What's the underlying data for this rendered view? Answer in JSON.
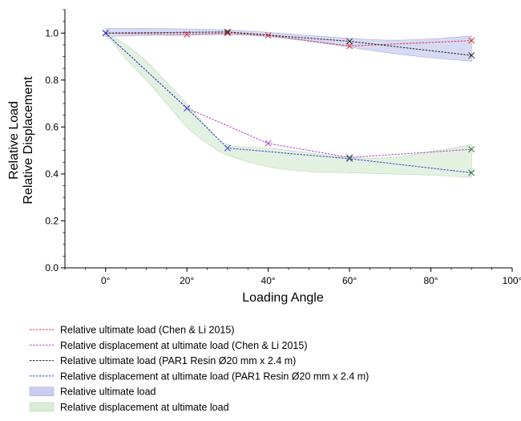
{
  "chart_data": {
    "type": "line",
    "title": "",
    "xlabel": "Loading Angle",
    "ylabel": [
      "Relative Load",
      "Relative Displacement"
    ],
    "xlim": [
      -10,
      100
    ],
    "ylim": [
      0,
      1.1
    ],
    "xticks": [
      0,
      20,
      40,
      60,
      80,
      100
    ],
    "xtick_labels": [
      "0°",
      "20°",
      "40°",
      "60°",
      "80°",
      "100°"
    ],
    "yticks": [
      0,
      0.2,
      0.4,
      0.6,
      0.8,
      1.0
    ],
    "ytick_labels": [
      "0.0",
      "0.2",
      "0.4",
      "0.6",
      "0.8",
      "1.0"
    ],
    "legend_position": "below",
    "series": [
      {
        "name": "Relative ultimate load (Chen & Li 2015)",
        "color": "#e0303a",
        "style": "dashed",
        "marker": "x",
        "x": [
          0,
          20,
          30,
          40,
          60,
          90
        ],
        "y": [
          1.0,
          0.995,
          1.0,
          0.99,
          0.945,
          0.968
        ]
      },
      {
        "name": "Relative displacement at ultimate load (Chen & Li 2015)",
        "color": "#b040c8",
        "style": "dashed",
        "marker": "x",
        "x": [
          0,
          20,
          40,
          60,
          90
        ],
        "y": [
          1.0,
          0.68,
          0.53,
          0.47,
          0.505
        ]
      },
      {
        "name": "Relative ultimate load (PAR1 Resin Ø20 mm x 2.4 m)",
        "color": "#222222",
        "style": "dashed",
        "marker": "x",
        "x": [
          0,
          30,
          60,
          90
        ],
        "y": [
          1.0,
          1.005,
          0.965,
          0.905
        ]
      },
      {
        "name": "Relative displacement at ultimate load (PAR1 Resin Ø20 mm x 2.4 m)",
        "color": "#3040d0",
        "style": "dashed",
        "marker": "x",
        "x": [
          0,
          20,
          30,
          60,
          90
        ],
        "y": [
          1.0,
          0.68,
          0.51,
          0.465,
          0.405
        ]
      }
    ],
    "bands": [
      {
        "name": "Relative ultimate load",
        "fill": "#c9cdf0",
        "edge": "#a9aee0",
        "x": [
          0,
          10,
          20,
          30,
          40,
          50,
          60,
          70,
          80,
          90
        ],
        "upper": [
          1.02,
          1.02,
          1.018,
          1.013,
          1.003,
          0.99,
          0.978,
          0.97,
          0.975,
          0.988
        ],
        "lower": [
          0.985,
          0.99,
          0.99,
          0.993,
          0.985,
          0.965,
          0.94,
          0.915,
          0.895,
          0.88
        ]
      },
      {
        "name": "Relative displacement at ultimate load",
        "fill": "#d9ecd6",
        "edge": "#bad9b4",
        "x": [
          0,
          5,
          10,
          15,
          20,
          25,
          30,
          40,
          50,
          60,
          70,
          80,
          90
        ],
        "upper": [
          1.0,
          0.95,
          0.88,
          0.79,
          0.7,
          0.6,
          0.525,
          0.51,
          0.49,
          0.47,
          0.47,
          0.495,
          0.525
        ],
        "lower": [
          1.0,
          0.89,
          0.8,
          0.7,
          0.6,
          0.53,
          0.48,
          0.43,
          0.41,
          0.405,
          0.4,
          0.395,
          0.385
        ]
      }
    ],
    "band_markers": {
      "color": "#3a8a3a",
      "points": [
        [
          60,
          0.468
        ],
        [
          90,
          0.405
        ],
        [
          90,
          0.505
        ]
      ]
    }
  }
}
